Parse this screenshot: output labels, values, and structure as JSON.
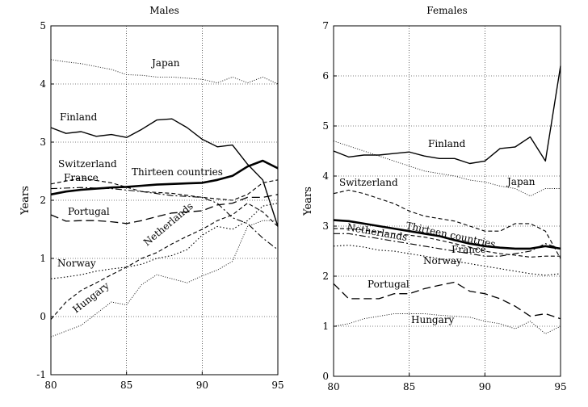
{
  "chart_data": [
    {
      "type": "line",
      "title": "Males",
      "ylabel": "Years",
      "xlim": [
        80,
        95
      ],
      "ylim": [
        -1,
        5
      ],
      "xticks": [
        80,
        85,
        90,
        95
      ],
      "yticks": [
        -1,
        0,
        1,
        2,
        3,
        4,
        5
      ],
      "grid": true,
      "series": [
        {
          "name": "Japan",
          "style": "fine-dotted",
          "x": [
            80,
            81,
            82,
            83,
            84,
            85,
            86,
            87,
            88,
            89,
            90,
            91,
            92,
            93,
            94,
            95
          ],
          "y": [
            4.42,
            4.38,
            4.35,
            4.3,
            4.25,
            4.16,
            4.15,
            4.12,
            4.12,
            4.1,
            4.08,
            4.02,
            4.12,
            4.02,
            4.12,
            4.0
          ]
        },
        {
          "name": "Finland",
          "style": "solid",
          "x": [
            80,
            81,
            82,
            83,
            84,
            85,
            86,
            87,
            88,
            89,
            90,
            91,
            92,
            93,
            94,
            95
          ],
          "y": [
            3.25,
            3.15,
            3.18,
            3.1,
            3.13,
            3.08,
            3.22,
            3.38,
            3.4,
            3.25,
            3.05,
            2.92,
            2.95,
            2.62,
            2.35,
            1.55
          ]
        },
        {
          "name": "Switzerland",
          "style": "dashed",
          "x": [
            80,
            82,
            84,
            86,
            88,
            90,
            92,
            93,
            94,
            95
          ],
          "y": [
            2.28,
            2.38,
            2.3,
            2.15,
            2.12,
            2.05,
            2.0,
            2.1,
            2.3,
            2.35
          ]
        },
        {
          "name": "France",
          "style": "dash-dot",
          "x": [
            80,
            82,
            84,
            86,
            88,
            90,
            91,
            92,
            93,
            94,
            95
          ],
          "y": [
            2.2,
            2.22,
            2.2,
            2.15,
            2.08,
            2.05,
            1.95,
            1.7,
            1.6,
            1.35,
            1.15
          ]
        },
        {
          "name": "Thirteen countries",
          "style": "bold",
          "x": [
            80,
            81,
            82,
            83,
            84,
            85,
            86,
            87,
            88,
            89,
            90,
            91,
            92,
            93,
            94,
            95
          ],
          "y": [
            2.1,
            2.15,
            2.18,
            2.2,
            2.22,
            2.23,
            2.25,
            2.27,
            2.28,
            2.29,
            2.3,
            2.35,
            2.42,
            2.58,
            2.68,
            2.55
          ]
        },
        {
          "name": "Portugal",
          "style": "long-dashed",
          "x": [
            80,
            81,
            82,
            83,
            84,
            85,
            86,
            87,
            88,
            89,
            90,
            91,
            92,
            93,
            94,
            95
          ],
          "y": [
            1.75,
            1.64,
            1.65,
            1.65,
            1.63,
            1.6,
            1.65,
            1.72,
            1.78,
            1.8,
            1.82,
            1.92,
            1.95,
            2.05,
            2.05,
            2.1
          ]
        },
        {
          "name": "Netherlands",
          "style": "dashed",
          "x": [
            80,
            81,
            82,
            83,
            84,
            85,
            86,
            87,
            88,
            89,
            90,
            91,
            92,
            93,
            94,
            95
          ],
          "y": [
            -0.05,
            0.25,
            0.45,
            0.58,
            0.72,
            0.85,
            1.0,
            1.1,
            1.25,
            1.38,
            1.5,
            1.65,
            1.75,
            1.95,
            1.8,
            1.55
          ]
        },
        {
          "name": "Norway",
          "style": "dotted",
          "x": [
            80,
            81,
            82,
            83,
            84,
            85,
            86,
            87,
            88,
            89,
            90,
            91,
            92,
            93,
            94,
            95
          ],
          "y": [
            0.65,
            0.68,
            0.72,
            0.78,
            0.82,
            0.85,
            0.9,
            1.0,
            1.05,
            1.15,
            1.4,
            1.55,
            1.5,
            1.65,
            1.9,
            1.95
          ]
        },
        {
          "name": "Hungary",
          "style": "fine-dotted",
          "x": [
            80,
            81,
            82,
            83,
            84,
            85,
            86,
            87,
            88,
            89,
            90,
            91,
            92,
            93,
            94,
            95
          ],
          "y": [
            -0.35,
            -0.25,
            -0.15,
            0.05,
            0.25,
            0.2,
            0.55,
            0.72,
            0.65,
            0.58,
            0.7,
            0.8,
            0.95,
            1.55,
            1.65,
            1.65
          ]
        }
      ]
    },
    {
      "type": "line",
      "title": "Females",
      "ylabel": "Years",
      "xlim": [
        80,
        95
      ],
      "ylim": [
        0,
        7
      ],
      "xticks": [
        80,
        85,
        90,
        95
      ],
      "yticks": [
        0,
        1,
        2,
        3,
        4,
        5,
        6,
        7
      ],
      "grid": true,
      "series": [
        {
          "name": "Finland",
          "style": "solid",
          "x": [
            80,
            81,
            82,
            83,
            84,
            85,
            86,
            87,
            88,
            89,
            90,
            91,
            92,
            93,
            94,
            95
          ],
          "y": [
            4.5,
            4.38,
            4.42,
            4.42,
            4.45,
            4.48,
            4.4,
            4.35,
            4.35,
            4.25,
            4.3,
            4.55,
            4.58,
            4.78,
            4.3,
            6.2
          ]
        },
        {
          "name": "Japan",
          "style": "fine-dotted",
          "x": [
            80,
            81,
            82,
            83,
            84,
            85,
            86,
            87,
            88,
            89,
            90,
            91,
            92,
            93,
            94,
            95
          ],
          "y": [
            4.7,
            4.6,
            4.5,
            4.4,
            4.3,
            4.2,
            4.1,
            4.05,
            4.0,
            3.92,
            3.88,
            3.8,
            3.75,
            3.6,
            3.75,
            3.75
          ]
        },
        {
          "name": "Switzerland",
          "style": "dashed",
          "x": [
            80,
            81,
            82,
            83,
            84,
            85,
            86,
            87,
            88,
            89,
            90,
            91,
            92,
            93,
            94,
            95
          ],
          "y": [
            3.65,
            3.72,
            3.65,
            3.55,
            3.45,
            3.3,
            3.2,
            3.15,
            3.1,
            3.0,
            2.9,
            2.9,
            3.05,
            3.05,
            2.9,
            2.35
          ]
        },
        {
          "name": "Thirteen countries",
          "style": "bold",
          "x": [
            80,
            81,
            82,
            83,
            84,
            85,
            86,
            87,
            88,
            89,
            90,
            91,
            92,
            93,
            94,
            95
          ],
          "y": [
            3.12,
            3.1,
            3.05,
            3.0,
            2.95,
            2.9,
            2.85,
            2.8,
            2.72,
            2.65,
            2.6,
            2.57,
            2.55,
            2.55,
            2.6,
            2.55
          ]
        },
        {
          "name": "Netherlands",
          "style": "dashed",
          "x": [
            80,
            81,
            82,
            83,
            84,
            85,
            86,
            87,
            88,
            89,
            90,
            91,
            92,
            93,
            94,
            95
          ],
          "y": [
            2.95,
            2.95,
            2.92,
            2.88,
            2.85,
            2.82,
            2.78,
            2.72,
            2.65,
            2.58,
            2.5,
            2.45,
            2.42,
            2.38,
            2.4,
            2.4
          ]
        },
        {
          "name": "France",
          "style": "dash-dot",
          "x": [
            80,
            81,
            82,
            83,
            84,
            85,
            86,
            87,
            88,
            89,
            90,
            91,
            92,
            93,
            94,
            95
          ],
          "y": [
            2.85,
            2.85,
            2.8,
            2.75,
            2.7,
            2.65,
            2.6,
            2.55,
            2.5,
            2.45,
            2.4,
            2.4,
            2.45,
            2.5,
            2.65,
            2.55
          ]
        },
        {
          "name": "Norway",
          "style": "dotted",
          "x": [
            80,
            81,
            82,
            83,
            84,
            85,
            86,
            87,
            88,
            89,
            90,
            91,
            92,
            93,
            94,
            95
          ],
          "y": [
            2.6,
            2.62,
            2.58,
            2.52,
            2.5,
            2.45,
            2.4,
            2.35,
            2.3,
            2.25,
            2.2,
            2.15,
            2.1,
            2.05,
            2.02,
            2.05
          ]
        },
        {
          "name": "Portugal",
          "style": "long-dashed",
          "x": [
            80,
            81,
            82,
            83,
            84,
            85,
            86,
            87,
            88,
            89,
            90,
            91,
            92,
            93,
            94,
            95
          ],
          "y": [
            1.85,
            1.55,
            1.55,
            1.55,
            1.65,
            1.65,
            1.75,
            1.82,
            1.88,
            1.7,
            1.65,
            1.55,
            1.4,
            1.2,
            1.25,
            1.15
          ]
        },
        {
          "name": "Hungary",
          "style": "fine-dotted",
          "x": [
            80,
            81,
            82,
            83,
            84,
            85,
            86,
            87,
            88,
            89,
            90,
            91,
            92,
            93,
            94,
            95
          ],
          "y": [
            1.0,
            1.05,
            1.15,
            1.2,
            1.25,
            1.25,
            1.25,
            1.22,
            1.2,
            1.18,
            1.1,
            1.05,
            0.95,
            1.1,
            0.85,
            1.0
          ]
        }
      ]
    }
  ]
}
